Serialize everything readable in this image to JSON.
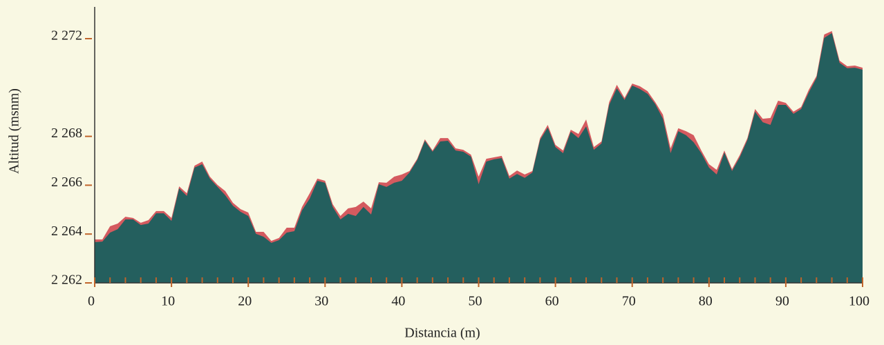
{
  "chart_data": {
    "type": "area",
    "xlabel": "Distancia (m)",
    "ylabel": "Altitud (msnm)",
    "x": [
      0,
      1,
      2,
      3,
      4,
      5,
      6,
      7,
      8,
      9,
      10,
      11,
      12,
      13,
      14,
      15,
      16,
      17,
      18,
      19,
      20,
      21,
      22,
      23,
      24,
      25,
      26,
      27,
      28,
      29,
      30,
      31,
      32,
      33,
      34,
      35,
      36,
      37,
      38,
      39,
      40,
      41,
      42,
      43,
      44,
      45,
      46,
      47,
      48,
      49,
      50,
      51,
      52,
      53,
      54,
      55,
      56,
      57,
      58,
      59,
      60,
      61,
      62,
      63,
      64,
      65,
      66,
      67,
      68,
      69,
      70,
      71,
      72,
      73,
      74,
      75,
      76,
      77,
      78,
      79,
      80,
      81,
      82,
      83,
      84,
      85,
      86,
      87,
      88,
      89,
      90,
      91,
      92,
      93,
      94,
      95,
      96,
      97,
      98,
      99,
      100
    ],
    "series": [
      {
        "color": "#d45a5f",
        "values": [
          2263.78,
          2263.78,
          2264.32,
          2264.43,
          2264.71,
          2264.66,
          2264.46,
          2264.57,
          2264.94,
          2264.94,
          2264.66,
          2265.95,
          2265.67,
          2266.8,
          2266.97,
          2266.35,
          2266.01,
          2265.76,
          2265.28,
          2265.02,
          2264.88,
          2264.09,
          2264.09,
          2263.72,
          2263.84,
          2264.26,
          2264.26,
          2265.11,
          2265.67,
          2266.27,
          2266.18,
          2265.22,
          2264.74,
          2265.05,
          2265.11,
          2265.33,
          2265.05,
          2266.12,
          2266.1,
          2266.35,
          2266.44,
          2266.58,
          2267.08,
          2267.88,
          2267.42,
          2267.93,
          2267.93,
          2267.51,
          2267.45,
          2267.25,
          2266.35,
          2267.08,
          2267.14,
          2267.2,
          2266.38,
          2266.6,
          2266.44,
          2266.58,
          2267.93,
          2268.47,
          2267.65,
          2267.42,
          2268.27,
          2268.1,
          2268.69,
          2267.56,
          2267.79,
          2269.4,
          2270.11,
          2269.57,
          2270.16,
          2270.05,
          2269.85,
          2269.4,
          2268.89,
          2267.51,
          2268.33,
          2268.21,
          2268.05,
          2267.42,
          2266.86,
          2266.63,
          2267.42,
          2266.66,
          2267.23,
          2267.93,
          2269.12,
          2268.72,
          2268.75,
          2269.46,
          2269.37,
          2269.01,
          2269.2,
          2269.91,
          2270.47,
          2272.17,
          2272.31,
          2271.1,
          2270.87,
          2270.9,
          2270.81
        ]
      },
      {
        "color": "#245f5e",
        "values": [
          2263.67,
          2263.69,
          2264.06,
          2264.2,
          2264.6,
          2264.6,
          2264.37,
          2264.43,
          2264.85,
          2264.85,
          2264.54,
          2265.87,
          2265.56,
          2266.72,
          2266.86,
          2266.27,
          2265.93,
          2265.59,
          2265.16,
          2264.91,
          2264.74,
          2264.01,
          2263.89,
          2263.64,
          2263.75,
          2264.06,
          2264.12,
          2264.97,
          2265.45,
          2266.18,
          2266.1,
          2265.11,
          2264.6,
          2264.83,
          2264.74,
          2265.11,
          2264.8,
          2266.04,
          2265.93,
          2266.1,
          2266.18,
          2266.52,
          2267.03,
          2267.82,
          2267.37,
          2267.79,
          2267.82,
          2267.42,
          2267.37,
          2267.17,
          2266.04,
          2266.97,
          2267.06,
          2267.11,
          2266.27,
          2266.46,
          2266.3,
          2266.52,
          2267.85,
          2268.36,
          2267.56,
          2267.31,
          2268.19,
          2267.93,
          2268.41,
          2267.45,
          2267.71,
          2269.29,
          2269.97,
          2269.49,
          2270.08,
          2269.94,
          2269.74,
          2269.32,
          2268.72,
          2267.31,
          2268.21,
          2268.05,
          2267.76,
          2267.31,
          2266.72,
          2266.44,
          2267.34,
          2266.58,
          2267.14,
          2267.85,
          2269.01,
          2268.58,
          2268.47,
          2269.29,
          2269.29,
          2268.92,
          2269.12,
          2269.8,
          2270.39,
          2272.03,
          2272.23,
          2271.01,
          2270.79,
          2270.81,
          2270.73
        ]
      }
    ],
    "xlim": [
      0,
      100
    ],
    "xticks": [
      0,
      10,
      20,
      30,
      40,
      50,
      60,
      70,
      80,
      90,
      100
    ],
    "xminorticks": [
      0,
      2,
      4,
      6,
      8,
      10,
      12,
      14,
      16,
      18,
      20,
      22,
      24,
      26,
      28,
      30,
      32,
      34,
      36,
      38,
      40,
      42,
      44,
      46,
      48,
      50,
      52,
      54,
      56,
      58,
      60,
      62,
      64,
      66,
      68,
      70,
      72,
      74,
      76,
      78,
      80,
      82,
      84,
      86,
      88,
      90,
      92,
      94,
      96,
      98,
      100
    ],
    "ylim": [
      2262,
      2273.3
    ],
    "yticks": [
      {
        "value": 2262,
        "label": "2 262"
      },
      {
        "value": 2264,
        "label": "2 264"
      },
      {
        "value": 2266,
        "label": "2 266"
      },
      {
        "value": 2268,
        "label": "2 268"
      },
      {
        "value": 2272,
        "label": "2 272"
      }
    ]
  }
}
